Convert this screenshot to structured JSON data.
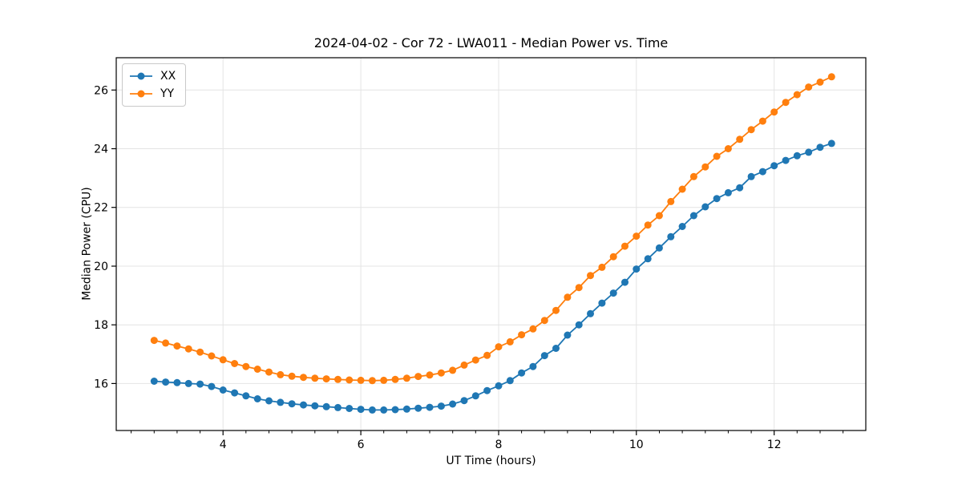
{
  "chart_data": {
    "type": "line",
    "title": "2024-04-02 - Cor 72 - LWA011 - Median Power vs. Time",
    "xlabel": "UT Time (hours)",
    "ylabel": "Median Power (CPU)",
    "xlim": [
      2.45,
      13.33
    ],
    "ylim": [
      14.4,
      27.1
    ],
    "xticks": [
      4,
      6,
      8,
      10,
      12
    ],
    "yticks": [
      16,
      18,
      20,
      22,
      24,
      26
    ],
    "x_minor_tick_step": 0.3333,
    "grid": true,
    "legend_position": "upper-left",
    "axis_color": "#000000",
    "grid_color": "#e4e4e4",
    "x": [
      3.0,
      3.167,
      3.333,
      3.5,
      3.667,
      3.833,
      4.0,
      4.167,
      4.333,
      4.5,
      4.667,
      4.833,
      5.0,
      5.167,
      5.333,
      5.5,
      5.667,
      5.833,
      6.0,
      6.167,
      6.333,
      6.5,
      6.667,
      6.833,
      7.0,
      7.167,
      7.333,
      7.5,
      7.667,
      7.833,
      8.0,
      8.167,
      8.333,
      8.5,
      8.667,
      8.833,
      9.0,
      9.167,
      9.333,
      9.5,
      9.667,
      9.833,
      10.0,
      10.167,
      10.333,
      10.5,
      10.667,
      10.833,
      11.0,
      11.167,
      11.333,
      11.5,
      11.667,
      11.833,
      12.0,
      12.167,
      12.333,
      12.5,
      12.667,
      12.833
    ],
    "series": [
      {
        "name": "XX",
        "color": "#1f77b4",
        "marker": "circle",
        "values": [
          16.08,
          16.05,
          16.03,
          16.0,
          15.98,
          15.9,
          15.78,
          15.68,
          15.58,
          15.48,
          15.41,
          15.36,
          15.31,
          15.27,
          15.24,
          15.21,
          15.18,
          15.15,
          15.12,
          15.1,
          15.1,
          15.11,
          15.13,
          15.16,
          15.19,
          15.23,
          15.3,
          15.42,
          15.58,
          15.76,
          15.92,
          16.1,
          16.36,
          16.58,
          16.95,
          17.2,
          17.65,
          18.0,
          18.38,
          18.74,
          19.08,
          19.45,
          19.9,
          20.25,
          20.62,
          21.0,
          21.35,
          21.72,
          22.02,
          22.3,
          22.5,
          22.67,
          23.05,
          23.22,
          23.42,
          23.6,
          23.76,
          23.88,
          24.05,
          24.18
        ]
      },
      {
        "name": "YY",
        "color": "#ff7f0e",
        "marker": "circle",
        "values": [
          17.47,
          17.38,
          17.28,
          17.18,
          17.07,
          16.94,
          16.81,
          16.68,
          16.58,
          16.49,
          16.39,
          16.3,
          16.25,
          16.21,
          16.18,
          16.16,
          16.14,
          16.12,
          16.11,
          16.1,
          16.11,
          16.14,
          16.18,
          16.24,
          16.29,
          16.36,
          16.45,
          16.63,
          16.8,
          16.96,
          17.25,
          17.42,
          17.66,
          17.86,
          18.15,
          18.49,
          18.94,
          19.27,
          19.68,
          19.96,
          20.32,
          20.68,
          21.02,
          21.4,
          21.72,
          22.2,
          22.62,
          23.05,
          23.38,
          23.74,
          24.0,
          24.32,
          24.65,
          24.94,
          25.25,
          25.58,
          25.84,
          26.1,
          26.27,
          26.45
        ]
      }
    ]
  }
}
